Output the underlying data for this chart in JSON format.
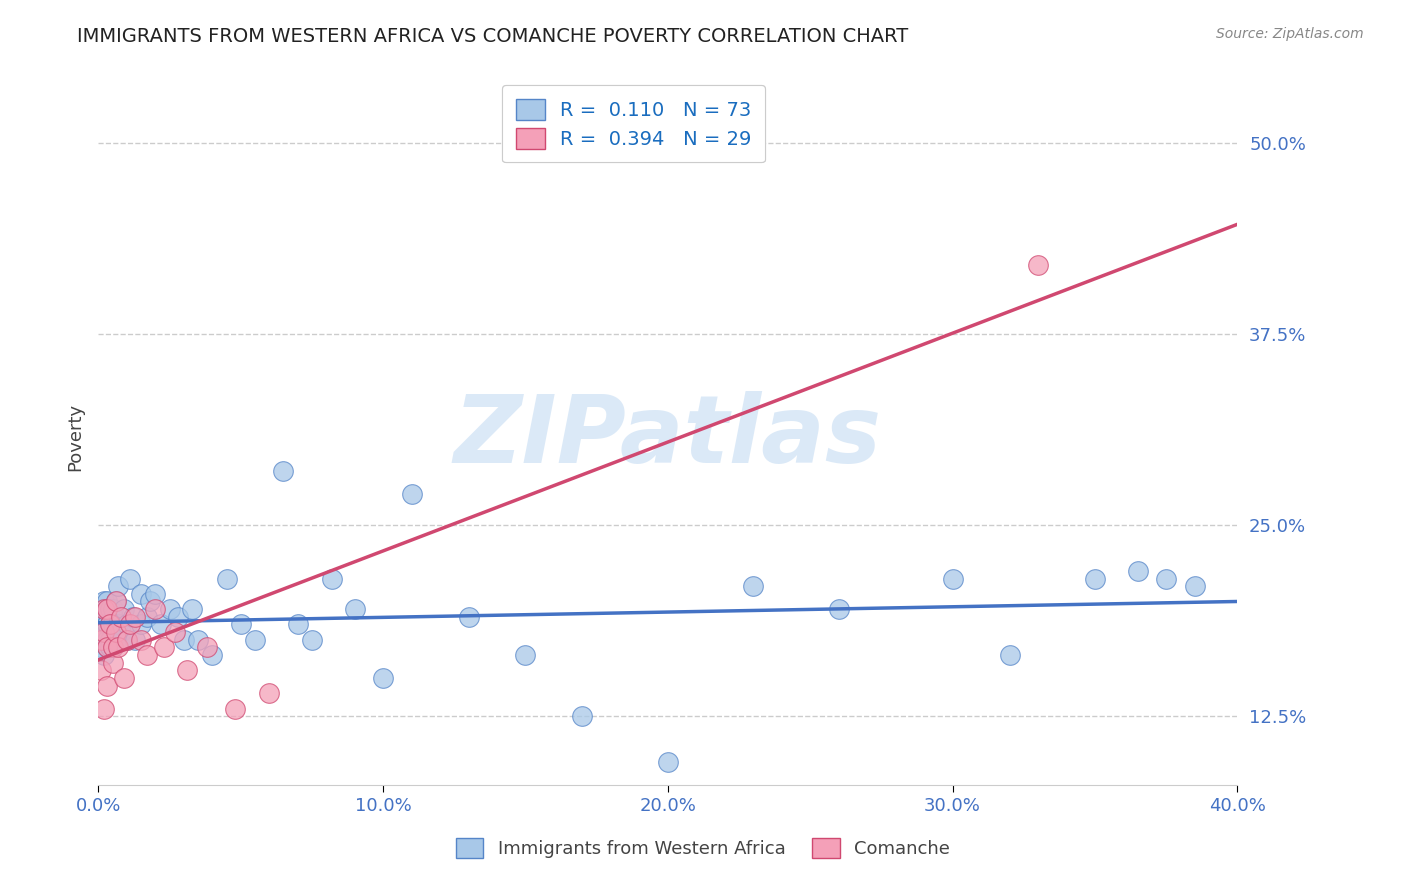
{
  "title": "IMMIGRANTS FROM WESTERN AFRICA VS COMANCHE POVERTY CORRELATION CHART",
  "source_text": "Source: ZipAtlas.com",
  "ylabel": "Poverty",
  "xlim": [
    0.0,
    0.4
  ],
  "ylim": [
    0.08,
    0.535
  ],
  "yticks": [
    0.125,
    0.25,
    0.375,
    0.5
  ],
  "ytick_labels": [
    "12.5%",
    "25.0%",
    "37.5%",
    "50.0%"
  ],
  "xticks": [
    0.0,
    0.1,
    0.2,
    0.3,
    0.4
  ],
  "xtick_labels": [
    "0.0%",
    "10.0%",
    "20.0%",
    "30.0%",
    "40.0%"
  ],
  "blue_R": 0.11,
  "blue_N": 73,
  "pink_R": 0.394,
  "pink_N": 29,
  "blue_color": "#a8c8e8",
  "pink_color": "#f4a0b8",
  "blue_edge_color": "#5585c8",
  "pink_edge_color": "#d04870",
  "blue_line_color": "#4472c4",
  "pink_line_color": "#d04870",
  "watermark": "ZIPatlas",
  "watermark_color": "#b8d4f0",
  "background_color": "#ffffff",
  "blue_x": [
    0.001,
    0.001,
    0.001,
    0.001,
    0.001,
    0.002,
    0.002,
    0.002,
    0.002,
    0.002,
    0.002,
    0.003,
    0.003,
    0.003,
    0.003,
    0.003,
    0.003,
    0.003,
    0.003,
    0.004,
    0.004,
    0.004,
    0.004,
    0.004,
    0.005,
    0.005,
    0.005,
    0.005,
    0.006,
    0.006,
    0.007,
    0.007,
    0.008,
    0.009,
    0.01,
    0.01,
    0.011,
    0.012,
    0.013,
    0.015,
    0.015,
    0.017,
    0.018,
    0.02,
    0.022,
    0.025,
    0.028,
    0.03,
    0.033,
    0.035,
    0.04,
    0.045,
    0.05,
    0.055,
    0.065,
    0.07,
    0.075,
    0.082,
    0.09,
    0.1,
    0.11,
    0.13,
    0.15,
    0.17,
    0.2,
    0.23,
    0.26,
    0.3,
    0.32,
    0.35,
    0.365,
    0.375,
    0.385
  ],
  "blue_y": [
    0.17,
    0.18,
    0.185,
    0.175,
    0.195,
    0.175,
    0.19,
    0.2,
    0.165,
    0.178,
    0.195,
    0.175,
    0.185,
    0.2,
    0.175,
    0.19,
    0.17,
    0.185,
    0.195,
    0.175,
    0.185,
    0.195,
    0.175,
    0.17,
    0.185,
    0.17,
    0.19,
    0.195,
    0.175,
    0.2,
    0.21,
    0.185,
    0.18,
    0.195,
    0.185,
    0.175,
    0.215,
    0.19,
    0.175,
    0.205,
    0.185,
    0.19,
    0.2,
    0.205,
    0.185,
    0.195,
    0.19,
    0.175,
    0.195,
    0.175,
    0.165,
    0.215,
    0.185,
    0.175,
    0.285,
    0.185,
    0.175,
    0.215,
    0.195,
    0.15,
    0.27,
    0.19,
    0.165,
    0.125,
    0.095,
    0.21,
    0.195,
    0.215,
    0.165,
    0.215,
    0.22,
    0.215,
    0.21
  ],
  "pink_x": [
    0.001,
    0.001,
    0.002,
    0.002,
    0.002,
    0.003,
    0.003,
    0.003,
    0.004,
    0.005,
    0.005,
    0.006,
    0.006,
    0.007,
    0.008,
    0.009,
    0.01,
    0.011,
    0.013,
    0.015,
    0.017,
    0.02,
    0.023,
    0.027,
    0.031,
    0.038,
    0.048,
    0.06,
    0.33
  ],
  "pink_y": [
    0.175,
    0.155,
    0.18,
    0.13,
    0.195,
    0.195,
    0.17,
    0.145,
    0.185,
    0.17,
    0.16,
    0.18,
    0.2,
    0.17,
    0.19,
    0.15,
    0.175,
    0.185,
    0.19,
    0.175,
    0.165,
    0.195,
    0.17,
    0.18,
    0.155,
    0.17,
    0.13,
    0.14,
    0.42
  ]
}
